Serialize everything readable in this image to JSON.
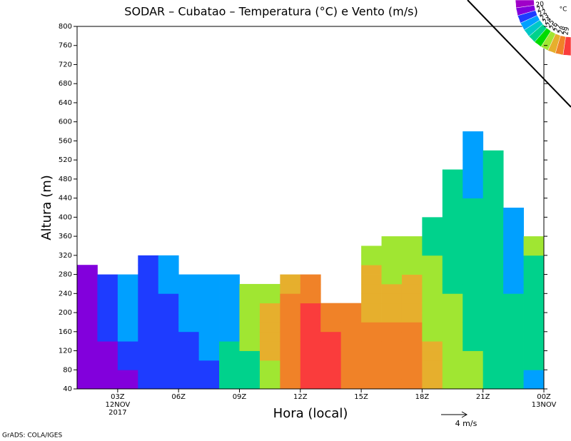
{
  "chart_data": {
    "type": "heatmap",
    "title": "SODAR – Cubatao – Temperatura (°C) e Vento (m/s)",
    "x_label": "Hora (local)",
    "y_label": "Altura (m)",
    "credit": "GrADS: COLA/IGES",
    "reference_vector_label": "4  m/s",
    "color_unit": "°C",
    "levels": [
      20,
      21,
      22,
      23,
      24,
      25,
      26,
      27,
      28,
      29
    ],
    "colors": [
      "#a000c8",
      "#8200dc",
      "#1e3cff",
      "#00a0ff",
      "#00c8c8",
      "#00d28c",
      "#00dc00",
      "#a0e632",
      "#e6af2d",
      "#f08228",
      "#fa3c3c"
    ],
    "xlim": [
      1,
      24
    ],
    "ylim": [
      40,
      800
    ],
    "xticks": [
      {
        "value": 3,
        "label": "03Z"
      },
      {
        "value": 6,
        "label": "06Z"
      },
      {
        "value": 9,
        "label": "09Z"
      },
      {
        "value": 12,
        "label": "12Z"
      },
      {
        "value": 15,
        "label": "15Z"
      },
      {
        "value": 18,
        "label": "18Z"
      },
      {
        "value": 21,
        "label": "21Z"
      },
      {
        "value": 24,
        "label": "00Z"
      }
    ],
    "date_labels": [
      {
        "value": 3,
        "lines": [
          "12NOV",
          "2017"
        ]
      },
      {
        "value": 24,
        "lines": [
          "13NOV"
        ]
      }
    ],
    "yticks": [
      40,
      80,
      120,
      160,
      200,
      240,
      280,
      320,
      360,
      400,
      440,
      480,
      520,
      560,
      600,
      640,
      680,
      720,
      760,
      800
    ],
    "x": [
      1,
      2,
      3,
      4,
      5,
      6,
      7,
      8,
      9,
      10,
      11,
      12,
      13,
      14,
      15,
      16,
      17,
      18,
      19,
      20,
      21,
      22,
      23,
      24
    ],
    "y": [
      40,
      60,
      80,
      100,
      120,
      140,
      160,
      180,
      200,
      220,
      240,
      260,
      280,
      300,
      320,
      340,
      360,
      380,
      400,
      420,
      440,
      460,
      480,
      500,
      520,
      540,
      560,
      580
    ],
    "z": [
      [
        20.5,
        20.5,
        20.5,
        20.5,
        20.5,
        20.5,
        20.5,
        20.5,
        20.5,
        20.5,
        20.5,
        20.5,
        20.5,
        null,
        null,
        null,
        null,
        null,
        null,
        null,
        null,
        null,
        null,
        null,
        null,
        null,
        null
      ],
      [
        20.5,
        20.5,
        20.5,
        20.5,
        20.5,
        21.5,
        21.5,
        21.5,
        21.5,
        21.5,
        21.5,
        21.5,
        null,
        null,
        null,
        null,
        null,
        null,
        null,
        null,
        null,
        null,
        null,
        null,
        null,
        null,
        null
      ],
      [
        20.5,
        20.5,
        21.5,
        21.5,
        21.5,
        22.5,
        22.5,
        22.5,
        22.5,
        22.5,
        22.5,
        22.5,
        null,
        null,
        null,
        null,
        null,
        null,
        null,
        null,
        null,
        null,
        null,
        null,
        null,
        null,
        null
      ],
      [
        21.5,
        21.5,
        21.5,
        21.5,
        21.5,
        21.5,
        21.5,
        21.5,
        21.5,
        21.5,
        21.5,
        21.5,
        21.5,
        21.5,
        null,
        null,
        null,
        null,
        null,
        null,
        null,
        null,
        null,
        null,
        null,
        null,
        null
      ],
      [
        21.5,
        21.5,
        21.5,
        21.5,
        21.5,
        21.5,
        21.5,
        21.5,
        21.5,
        21.5,
        22.5,
        22.5,
        22.5,
        22.5,
        null,
        null,
        null,
        null,
        null,
        null,
        null,
        null,
        null,
        null,
        null,
        null,
        null
      ],
      [
        21.5,
        21.5,
        21.5,
        21.5,
        21.5,
        21.5,
        22.5,
        22.5,
        22.5,
        22.5,
        22.5,
        22.5,
        null,
        null,
        null,
        null,
        null,
        null,
        null,
        null,
        null,
        null,
        null,
        null,
        null,
        null,
        null
      ],
      [
        21.5,
        21.5,
        21.5,
        22.5,
        22.5,
        22.5,
        22.5,
        22.5,
        22.5,
        22.5,
        22.5,
        22.5,
        null,
        null,
        null,
        null,
        null,
        null,
        null,
        null,
        null,
        null,
        null,
        null,
        null,
        null,
        null
      ],
      [
        24.5,
        24.5,
        24.5,
        24.5,
        24.5,
        22.5,
        22.5,
        22.5,
        22.5,
        22.5,
        22.5,
        22.5,
        null,
        null,
        null,
        null,
        null,
        null,
        null,
        null,
        null,
        null,
        null,
        null,
        null,
        null,
        null
      ],
      [
        24.5,
        24.5,
        24.5,
        24.5,
        26.5,
        26.5,
        26.5,
        26.5,
        26.5,
        26.5,
        26.5,
        null,
        null,
        null,
        null,
        null,
        null,
        null,
        null,
        null,
        null,
        null,
        null,
        null,
        null,
        null,
        null
      ],
      [
        26.5,
        26.5,
        26.5,
        27.5,
        27.5,
        27.5,
        27.5,
        27.5,
        27.5,
        26.5,
        26.5,
        null,
        null,
        null,
        null,
        null,
        null,
        null,
        null,
        null,
        null,
        null,
        null,
        null,
        null,
        null,
        null
      ],
      [
        28.5,
        28.5,
        28.5,
        28.5,
        28.5,
        28.5,
        28.5,
        28.5,
        28.5,
        28.5,
        27.5,
        27.5,
        null,
        null,
        null,
        null,
        null,
        null,
        null,
        null,
        null,
        null,
        null,
        null,
        null,
        null,
        null
      ],
      [
        29.5,
        29.5,
        29.5,
        29.5,
        29.5,
        29.5,
        29.5,
        29.5,
        29.5,
        28.5,
        28.5,
        28.5,
        null,
        null,
        null,
        null,
        null,
        null,
        null,
        null,
        null,
        null,
        null,
        null,
        null,
        null,
        null
      ],
      [
        29.5,
        29.5,
        29.5,
        29.5,
        29.5,
        29.5,
        28.5,
        28.5,
        28.5,
        null,
        null,
        null,
        null,
        null,
        null,
        null,
        null,
        null,
        null,
        null,
        null,
        null,
        null,
        null,
        null,
        null,
        null
      ],
      [
        28.5,
        28.5,
        28.5,
        28.5,
        28.5,
        28.5,
        28.5,
        28.5,
        28.5,
        null,
        null,
        null,
        null,
        null,
        null,
        null,
        null,
        null,
        null,
        null,
        null,
        null,
        null,
        null,
        null,
        null,
        null
      ],
      [
        28.5,
        28.5,
        28.5,
        28.5,
        28.5,
        28.5,
        28.5,
        27.5,
        27.5,
        27.5,
        27.5,
        27.5,
        27.5,
        26.5,
        26.5,
        null,
        null,
        null,
        null,
        null,
        null,
        null,
        null,
        null,
        null,
        null,
        null
      ],
      [
        28.5,
        28.5,
        28.5,
        28.5,
        28.5,
        28.5,
        28.5,
        27.5,
        27.5,
        27.5,
        27.5,
        26.5,
        26.5,
        26.5,
        26.5,
        26.5,
        null,
        null,
        null,
        null,
        null,
        null,
        null,
        null,
        null,
        null,
        null
      ],
      [
        28.5,
        28.5,
        28.5,
        28.5,
        28.5,
        28.5,
        28.5,
        27.5,
        27.5,
        27.5,
        27.5,
        27.5,
        26.5,
        26.5,
        26.5,
        26.5,
        null,
        null,
        null,
        null,
        null,
        null,
        null,
        null,
        null,
        null,
        null
      ],
      [
        27.5,
        27.5,
        27.5,
        27.5,
        27.5,
        26.5,
        26.5,
        26.5,
        26.5,
        26.5,
        26.5,
        26.5,
        26.5,
        26.5,
        24.5,
        24.5,
        24.5,
        24.5,
        null,
        null,
        null,
        null,
        null,
        null,
        null,
        null,
        null
      ],
      [
        26.5,
        26.5,
        26.5,
        26.5,
        26.5,
        26.5,
        26.5,
        26.5,
        26.5,
        26.5,
        24.5,
        24.5,
        24.5,
        24.5,
        24.5,
        24.5,
        24.5,
        24.5,
        24.5,
        24.5,
        24.5,
        24.5,
        24.5,
        null,
        null,
        null,
        null
      ],
      [
        26.5,
        26.5,
        26.5,
        26.5,
        24.5,
        24.5,
        24.5,
        24.5,
        24.5,
        24.5,
        24.5,
        24.5,
        24.5,
        24.5,
        24.5,
        24.5,
        24.5,
        24.5,
        24.5,
        24.5,
        22.5,
        22.5,
        22.5,
        22.5,
        22.5,
        22.5,
        22.5
      ],
      [
        24.5,
        24.5,
        24.5,
        24.5,
        24.5,
        24.5,
        24.5,
        24.5,
        24.5,
        24.5,
        24.5,
        24.5,
        24.5,
        24.5,
        24.5,
        24.5,
        24.5,
        24.5,
        24.5,
        24.5,
        24.5,
        24.5,
        24.5,
        24.5,
        24.5,
        null,
        null
      ],
      [
        24.5,
        24.5,
        24.5,
        24.5,
        24.5,
        24.5,
        24.5,
        24.5,
        24.5,
        24.5,
        22.5,
        22.5,
        22.5,
        22.5,
        22.5,
        22.5,
        22.5,
        22.5,
        22.5,
        null,
        null,
        null,
        null,
        null,
        null,
        null,
        null
      ],
      [
        22.5,
        22.5,
        24.5,
        24.5,
        24.5,
        24.5,
        24.5,
        24.5,
        24.5,
        24.5,
        24.5,
        24.5,
        24.5,
        24.5,
        26.5,
        26.5,
        null,
        null,
        null,
        null,
        null,
        null,
        null,
        null,
        null,
        null,
        null
      ]
    ]
  }
}
